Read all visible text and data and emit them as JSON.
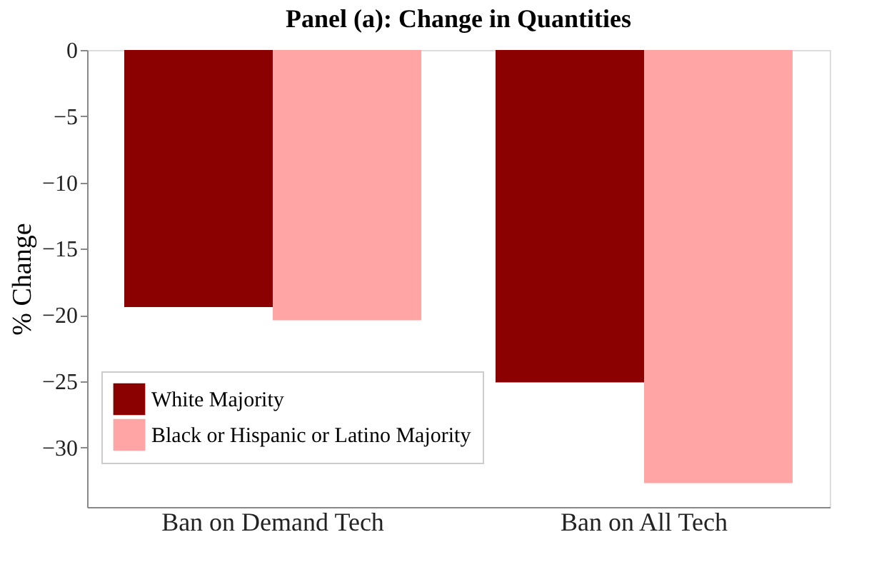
{
  "chart_data": {
    "type": "bar",
    "title": "Panel (a): Change in Quantities",
    "ylabel": "% Change",
    "categories": [
      "Ban on Demand Tech",
      "Ban on All Tech"
    ],
    "series": [
      {
        "name": "White Majority",
        "color": "#8b0000",
        "values": [
          -19.4,
          -25.1
        ]
      },
      {
        "name": "Black or Hispanic or Latino Majority",
        "color": "#ffa5a5",
        "values": [
          -20.4,
          -32.7
        ]
      }
    ],
    "ylim": [
      -34.5,
      0
    ],
    "yticks": [
      0,
      -5,
      -10,
      -15,
      -20,
      -25,
      -30
    ],
    "grid": false,
    "legend": "bottom left"
  }
}
